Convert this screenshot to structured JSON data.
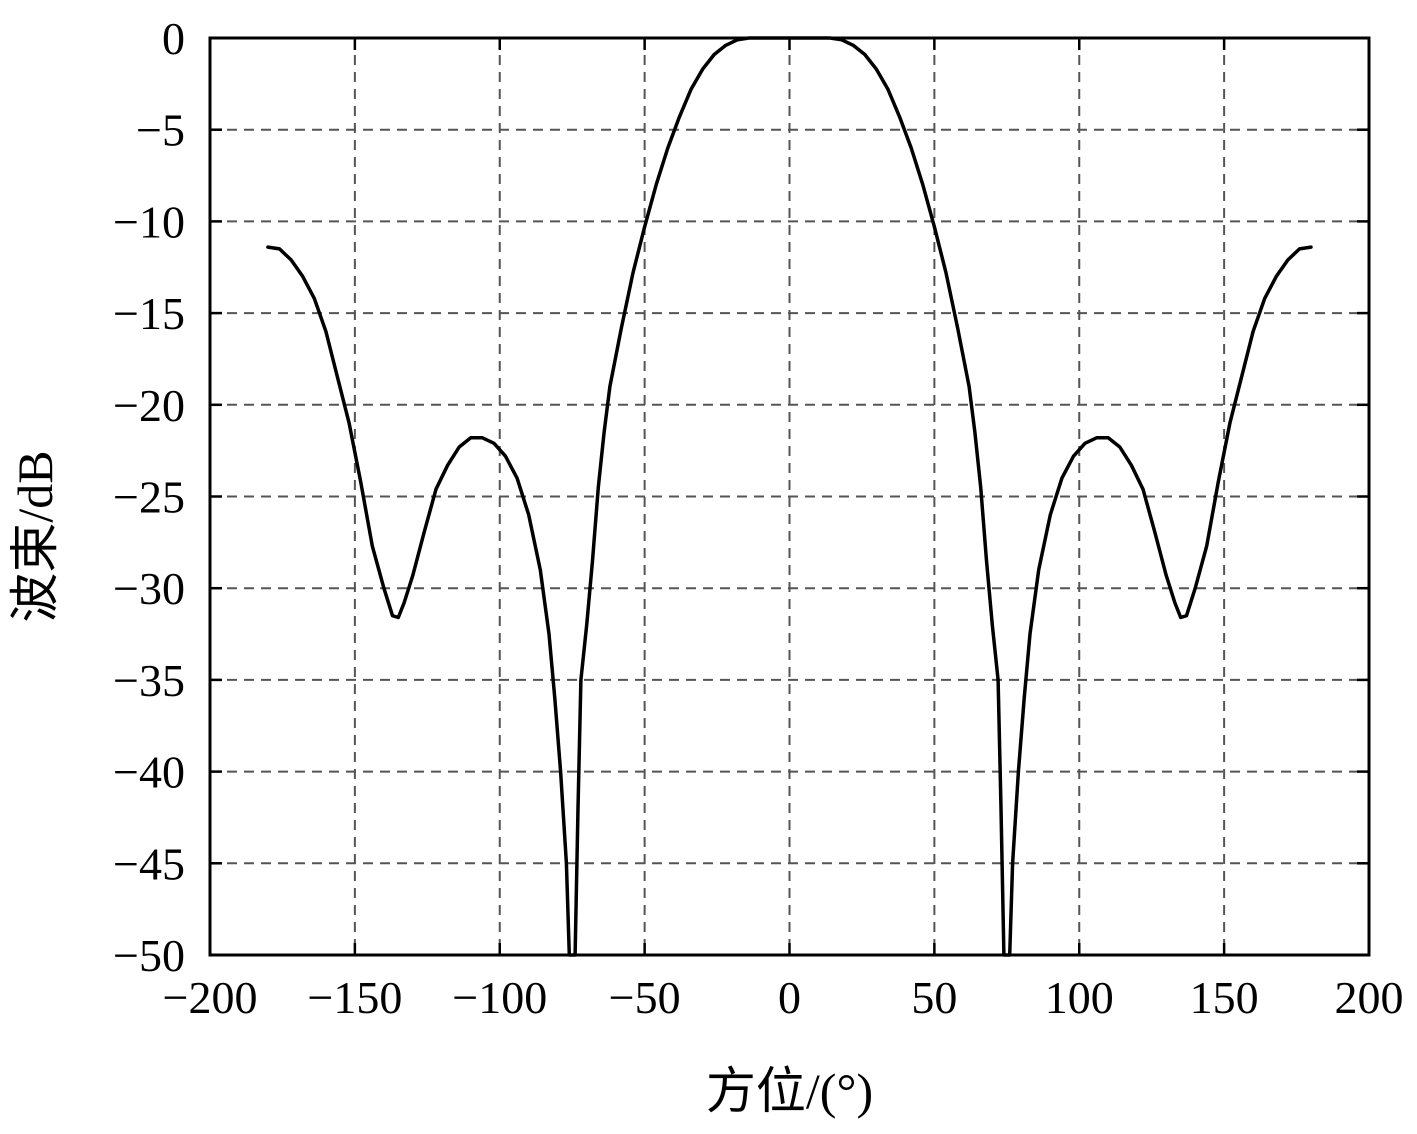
{
  "chart_data": {
    "type": "line",
    "title": "",
    "xlabel": "方位/(°)",
    "ylabel": "波束/dB",
    "xlim": [
      -200,
      200
    ],
    "ylim": [
      -50,
      0
    ],
    "xticks": [
      -200,
      -150,
      -100,
      -50,
      0,
      50,
      100,
      150,
      200
    ],
    "yticks": [
      0,
      -5,
      -10,
      -15,
      -20,
      -25,
      -30,
      -35,
      -40,
      -45,
      -50
    ],
    "xtick_labels": [
      "−200",
      "−150",
      "−100",
      "−50",
      "0",
      "50",
      "100",
      "150",
      "200"
    ],
    "ytick_labels": [
      "0",
      "−5",
      "−10",
      "−15",
      "−20",
      "−25",
      "−30",
      "−35",
      "−40",
      "−45",
      "−50"
    ],
    "grid": true,
    "grid_style": "dashed",
    "legend": "none",
    "line_color": "#000000",
    "series": [
      {
        "x": [
          -180,
          -176,
          -172,
          -168,
          -164,
          -160,
          -156,
          -152,
          -148,
          -144,
          -140,
          -137,
          -135,
          -133,
          -130,
          -126,
          -122,
          -118,
          -114,
          -110,
          -106,
          -102,
          -98,
          -94,
          -90,
          -86,
          -83,
          -81,
          -79,
          -77,
          -76,
          -75.5,
          -75,
          -74.5,
          -74,
          -73,
          -72,
          -70,
          -68,
          -66,
          -64,
          -62,
          -58,
          -54,
          -50,
          -46,
          -42,
          -38,
          -34,
          -30,
          -26,
          -22,
          -18,
          -14,
          -10,
          -6,
          -3,
          0,
          3,
          6,
          10,
          14,
          18,
          22,
          26,
          30,
          34,
          38,
          42,
          46,
          50,
          54,
          58,
          62,
          64,
          66,
          68,
          70,
          72,
          73,
          74,
          74.5,
          75,
          75.5,
          76,
          77,
          79,
          81,
          83,
          86,
          90,
          94,
          98,
          102,
          106,
          110,
          114,
          118,
          122,
          126,
          130,
          133,
          135,
          137,
          140,
          144,
          148,
          152,
          156,
          160,
          164,
          168,
          172,
          176,
          180
        ],
        "y": [
          -11.4,
          -11.5,
          -12.1,
          -13.0,
          -14.2,
          -16.0,
          -18.5,
          -21.0,
          -24.2,
          -27.7,
          -30.0,
          -31.5,
          -31.6,
          -30.8,
          -29.3,
          -26.9,
          -24.6,
          -23.3,
          -22.3,
          -21.8,
          -21.8,
          -22.1,
          -22.8,
          -24.0,
          -26.0,
          -29.0,
          -32.5,
          -36.0,
          -40.0,
          -45.0,
          -50.0,
          -50.0,
          -50.0,
          -50.0,
          -50.0,
          -42.0,
          -35.0,
          -32.0,
          -28.5,
          -24.5,
          -21.5,
          -19.0,
          -15.8,
          -12.8,
          -10.3,
          -8.0,
          -6.0,
          -4.3,
          -2.8,
          -1.7,
          -0.9,
          -0.4,
          -0.1,
          0.0,
          0.0,
          0.0,
          0.0,
          0.0,
          0.0,
          0.0,
          0.0,
          0.0,
          -0.1,
          -0.4,
          -0.9,
          -1.7,
          -2.8,
          -4.3,
          -6.0,
          -8.0,
          -10.3,
          -12.8,
          -15.8,
          -19.0,
          -21.5,
          -24.5,
          -28.5,
          -32.0,
          -35.0,
          -42.0,
          -50.0,
          -50.0,
          -50.0,
          -50.0,
          -50.0,
          -45.0,
          -40.0,
          -36.0,
          -32.5,
          -29.0,
          -26.0,
          -24.0,
          -22.8,
          -22.1,
          -21.8,
          -21.8,
          -22.3,
          -23.3,
          -24.6,
          -26.9,
          -29.3,
          -30.8,
          -31.6,
          -31.5,
          -30.0,
          -27.7,
          -24.2,
          -21.0,
          -18.5,
          -16.0,
          -14.2,
          -13.0,
          -12.1,
          -11.5,
          -11.4
        ]
      }
    ]
  }
}
